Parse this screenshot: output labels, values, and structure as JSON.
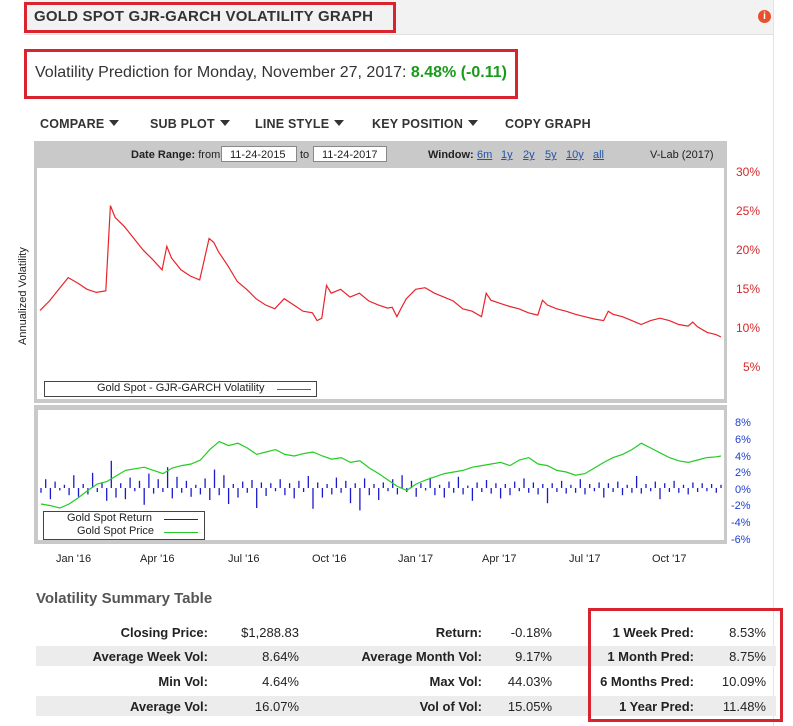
{
  "header": {
    "title": "GOLD SPOT GJR-GARCH VOLATILITY GRAPH",
    "info_icon": "i"
  },
  "prediction": {
    "label": "Volatility Prediction for Monday, November 27, 2017:",
    "value": "8.48% (-0.11)"
  },
  "menu": {
    "compare": "COMPARE",
    "sub_plot": "SUB PLOT",
    "line_style": "LINE STYLE",
    "key_position": "KEY POSITION",
    "copy_graph": "COPY GRAPH"
  },
  "controls": {
    "date_range_label": "Date Range:",
    "from_label": "from",
    "from_value": "11-24-2015",
    "to_label": "to",
    "to_value": "11-24-2017",
    "window_label": "Window:",
    "windows": [
      "6m",
      "1y",
      "2y",
      "5y",
      "10y",
      "all"
    ],
    "credit": "V-Lab (2017)"
  },
  "colors": {
    "volatility": "#e8242b",
    "price": "#22cc22",
    "return": "#1a1acc",
    "accent_red": "#d9232e",
    "pred_green": "#1a9a1a"
  },
  "chart_data": [
    {
      "type": "line",
      "ylabel": "Annualized Volatility",
      "yticks": [
        "30%",
        "25%",
        "20%",
        "15%",
        "10%",
        "5%"
      ],
      "ylim": [
        2,
        30
      ],
      "y_axis_side": "right",
      "legend": "bottom-left",
      "series": [
        {
          "name": "Gold Spot - GJR-GARCH Volatility",
          "points": [
            [
              0,
              12.3
            ],
            [
              2,
              13.5
            ],
            [
              4,
              15
            ],
            [
              6,
              16.5
            ],
            [
              8,
              15.8
            ],
            [
              10,
              15
            ],
            [
              12,
              14.6
            ],
            [
              14,
              14.8
            ],
            [
              15,
              25.7
            ],
            [
              16,
              24.2
            ],
            [
              18,
              23
            ],
            [
              20,
              21.5
            ],
            [
              22,
              20
            ],
            [
              24,
              18.8
            ],
            [
              26,
              17.5
            ],
            [
              27,
              20.5
            ],
            [
              28,
              19
            ],
            [
              30,
              17.5
            ],
            [
              32,
              16.7
            ],
            [
              34,
              16.2
            ],
            [
              36,
              21.5
            ],
            [
              37,
              21
            ],
            [
              38,
              19.8
            ],
            [
              40,
              18
            ],
            [
              42,
              16
            ],
            [
              44,
              15
            ],
            [
              46,
              13.8
            ],
            [
              48,
              13
            ],
            [
              50,
              12.5
            ],
            [
              52,
              13.8
            ],
            [
              54,
              13
            ],
            [
              56,
              12.2
            ],
            [
              58,
              12
            ],
            [
              59,
              11
            ],
            [
              60,
              11.3
            ],
            [
              61,
              15.5
            ],
            [
              62,
              14.5
            ],
            [
              64,
              15
            ],
            [
              66,
              14
            ],
            [
              68,
              14.5
            ],
            [
              70,
              13.5
            ],
            [
              72,
              13
            ],
            [
              74,
              12.6
            ],
            [
              75,
              12.7
            ],
            [
              76,
              11.5
            ],
            [
              77,
              12.7
            ],
            [
              78,
              13.8
            ],
            [
              80,
              15
            ],
            [
              82,
              15.2
            ],
            [
              84,
              14.5
            ],
            [
              86,
              14
            ],
            [
              88,
              13.5
            ],
            [
              90,
              12.5
            ],
            [
              92,
              12.2
            ],
            [
              94,
              11.5
            ],
            [
              95,
              14.5
            ],
            [
              96,
              13.6
            ],
            [
              98,
              13.2
            ],
            [
              100,
              12.8
            ],
            [
              102,
              12.5
            ],
            [
              104,
              12
            ],
            [
              106,
              11.7
            ],
            [
              107,
              13.6
            ],
            [
              108,
              13
            ],
            [
              110,
              12.5
            ],
            [
              112,
              12.2
            ],
            [
              114,
              11.8
            ],
            [
              116,
              11.5
            ],
            [
              118,
              11.2
            ],
            [
              120,
              11
            ],
            [
              121,
              12.2
            ],
            [
              122,
              11.8
            ],
            [
              124,
              11.5
            ],
            [
              126,
              11
            ],
            [
              128,
              10.5
            ],
            [
              130,
              11
            ],
            [
              132,
              11.3
            ],
            [
              134,
              11
            ],
            [
              136,
              10.5
            ],
            [
              138,
              10.3
            ],
            [
              139,
              10.8
            ],
            [
              140,
              10.2
            ],
            [
              142,
              9.5
            ],
            [
              144,
              9.2
            ],
            [
              145,
              8.9
            ]
          ]
        }
      ]
    },
    {
      "type": "line",
      "yticks": [
        "8%",
        "6%",
        "4%",
        "2%",
        "0%",
        "-2%",
        "-4%",
        "-6%"
      ],
      "ylim": [
        -6,
        8
      ],
      "y_axis_side": "right",
      "legend": "bottom-left",
      "xticks": [
        "Jan '16",
        "Apr '16",
        "Jul '16",
        "Oct '16",
        "Jan '17",
        "Apr '17",
        "Jul '17",
        "Oct '17"
      ],
      "series": [
        {
          "name": "Gold Spot Return",
          "values": [
            -0.6,
            1.1,
            -1.4,
            0.8,
            -0.3,
            0.4,
            -0.9,
            1.6,
            -1.1,
            0.5,
            -0.8,
            1.9,
            -0.5,
            0.7,
            -1.6,
            3.4,
            -1.2,
            0.6,
            -1.4,
            1.3,
            -0.4,
            0.9,
            -2.1,
            1.8,
            -0.7,
            1.1,
            -0.5,
            2.6,
            -1.3,
            1.4,
            -0.6,
            0.9,
            -1.1,
            0.4,
            -0.8,
            1.2,
            -1.5,
            2.3,
            -0.9,
            1.6,
            -2,
            0.5,
            -1.2,
            0.8,
            -0.6,
            1,
            -2.5,
            0.7,
            -1,
            0.6,
            -0.4,
            1.1,
            -0.9,
            0.6,
            -1.3,
            0.9,
            -0.5,
            1.5,
            -2.6,
            0.7,
            -1.2,
            0.5,
            -0.8,
            1.3,
            -0.6,
            0.9,
            -1.9,
            0.6,
            -2.8,
            1.2,
            -0.9,
            0.5,
            -1.5,
            0.7,
            -0.4,
            1.1,
            -0.8,
            1.6,
            -0.5,
            0.9,
            -1.1,
            0.6,
            -0.3,
            1.3,
            -0.9,
            0.4,
            -1.2,
            0.8,
            -0.6,
            1.4,
            -0.8,
            0.3,
            -1.6,
            0.7,
            -0.5,
            1,
            -0.7,
            0.6,
            -1.3,
            0.5,
            -0.9,
            0.8,
            -0.4,
            1.2,
            -0.6,
            0.7,
            -0.8,
            0.5,
            -1.9,
            0.6,
            -0.5,
            0.9,
            -0.7,
            0.4,
            -0.6,
            1.1,
            -0.8,
            0.5,
            -0.4,
            0.7,
            -1.2,
            0.6,
            -0.5,
            0.8,
            -0.9,
            0.4,
            -0.6,
            1.5,
            -0.7,
            0.5,
            -0.4,
            0.8,
            -1.4,
            0.6,
            -0.5,
            0.9,
            -0.6,
            0.4,
            -0.8,
            0.7,
            -0.5,
            0.6,
            -0.4,
            0.5,
            -0.6,
            0.4
          ]
        },
        {
          "name": "Gold Spot Price",
          "points": [
            [
              0,
              -2
            ],
            [
              2,
              -2.2
            ],
            [
              4,
              -2.5
            ],
            [
              6,
              -2
            ],
            [
              8,
              -1.2
            ],
            [
              10,
              -0.3
            ],
            [
              12,
              0.5
            ],
            [
              14,
              0.8
            ],
            [
              16,
              1.5
            ],
            [
              18,
              2.2
            ],
            [
              20,
              2.4
            ],
            [
              22,
              2.6
            ],
            [
              24,
              2.2
            ],
            [
              26,
              1.8
            ],
            [
              28,
              2.5
            ],
            [
              30,
              2.8
            ],
            [
              32,
              3
            ],
            [
              34,
              3.5
            ],
            [
              36,
              4.8
            ],
            [
              38,
              5.8
            ],
            [
              40,
              5.3
            ],
            [
              42,
              5.6
            ],
            [
              44,
              5
            ],
            [
              46,
              4.2
            ],
            [
              48,
              4.5
            ],
            [
              50,
              4.8
            ],
            [
              52,
              4.2
            ],
            [
              54,
              4
            ],
            [
              56,
              4.3
            ],
            [
              58,
              4.5
            ],
            [
              60,
              4
            ],
            [
              62,
              3.6
            ],
            [
              64,
              3.8
            ],
            [
              66,
              3.2
            ],
            [
              68,
              3.4
            ],
            [
              70,
              2.5
            ],
            [
              72,
              1.8
            ],
            [
              74,
              1
            ],
            [
              76,
              0.2
            ],
            [
              78,
              -0.3
            ],
            [
              80,
              0.5
            ],
            [
              82,
              1
            ],
            [
              84,
              1.4
            ],
            [
              86,
              1.8
            ],
            [
              88,
              2
            ],
            [
              90,
              2.2
            ],
            [
              92,
              2.6
            ],
            [
              94,
              2.8
            ],
            [
              96,
              3
            ],
            [
              98,
              3.2
            ],
            [
              100,
              2.8
            ],
            [
              102,
              3.5
            ],
            [
              104,
              3.8
            ],
            [
              106,
              3
            ],
            [
              108,
              2.8
            ],
            [
              110,
              2.2
            ],
            [
              112,
              2
            ],
            [
              114,
              1.6
            ],
            [
              116,
              1.8
            ],
            [
              118,
              2.5
            ],
            [
              120,
              3.2
            ],
            [
              122,
              3.8
            ],
            [
              124,
              4.2
            ],
            [
              126,
              4.8
            ],
            [
              128,
              5.6
            ],
            [
              130,
              5
            ],
            [
              132,
              4.4
            ],
            [
              134,
              3.8
            ],
            [
              136,
              3.4
            ],
            [
              138,
              3.2
            ],
            [
              140,
              3.5
            ],
            [
              142,
              3.8
            ],
            [
              144,
              3.9
            ],
            [
              145,
              4
            ]
          ]
        }
      ]
    }
  ],
  "summary": {
    "title": "Volatility Summary Table",
    "rows": [
      [
        {
          "label": "Closing Price:",
          "value": "$1,288.83"
        },
        {
          "label": "Return:",
          "value": "-0.18%"
        },
        {
          "label": "1 Week Pred:",
          "value": "8.53%"
        }
      ],
      [
        {
          "label": "Average Week Vol:",
          "value": "8.64%"
        },
        {
          "label": "Average Month Vol:",
          "value": "9.17%"
        },
        {
          "label": "1 Month Pred:",
          "value": "8.75%"
        }
      ],
      [
        {
          "label": "Min Vol:",
          "value": "4.64%"
        },
        {
          "label": "Max Vol:",
          "value": "44.03%"
        },
        {
          "label": "6 Months Pred:",
          "value": "10.09%"
        }
      ],
      [
        {
          "label": "Average Vol:",
          "value": "16.07%"
        },
        {
          "label": "Vol of Vol:",
          "value": "15.05%"
        },
        {
          "label": "1 Year Pred:",
          "value": "11.48%"
        }
      ]
    ]
  }
}
